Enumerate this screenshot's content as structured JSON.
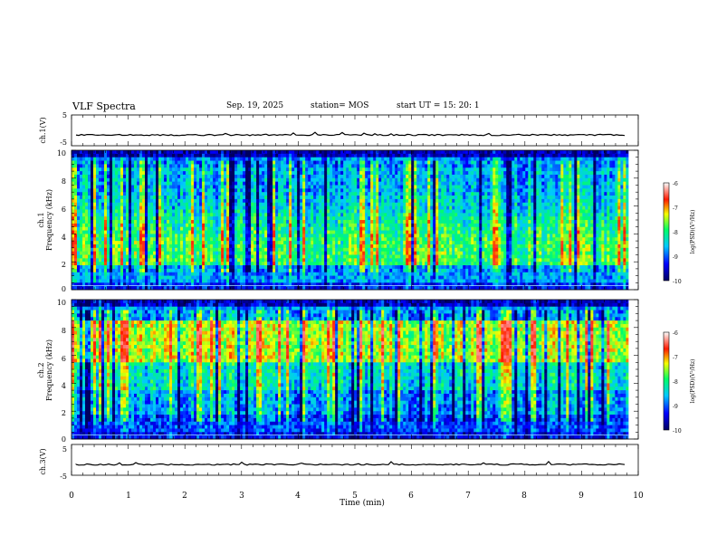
{
  "header": {
    "title": "VLF Spectra",
    "date": "Sep. 19, 2025",
    "station": "station= MOS",
    "start": "start  UT =   15: 20: 1"
  },
  "chart_data": [
    {
      "type": "line",
      "id": "ch1-waveform",
      "ylabel": "ch.1(V)",
      "ylim": [
        -5,
        5
      ],
      "y_tick_labels": [
        "5",
        "-5"
      ],
      "baseline": -1.5,
      "xlim": [
        0,
        10
      ]
    },
    {
      "type": "heatmap",
      "id": "ch1-spectrogram",
      "ylabel": [
        "ch.1",
        "Frequency (kHz)"
      ],
      "ylim": [
        0,
        10
      ],
      "y_tick_labels": [
        "0",
        "2",
        "4",
        "6",
        "8",
        "10"
      ],
      "xlim": [
        0,
        9.83
      ],
      "colorbar": {
        "label": "log(PSD)(V²/Hz)",
        "range": [
          -10,
          -6
        ],
        "tick_labels": [
          "-6",
          "-7",
          "-8",
          "-9",
          "-10"
        ]
      }
    },
    {
      "type": "heatmap",
      "id": "ch2-spectrogram",
      "ylabel": [
        "ch.2",
        "Frequency (kHz)"
      ],
      "ylim": [
        0,
        10
      ],
      "y_tick_labels": [
        "0",
        "2",
        "4",
        "6",
        "8",
        "10"
      ],
      "xlim": [
        0,
        9.83
      ],
      "colorbar": {
        "label": "log(PSD)(V²/Hz)",
        "range": [
          -10,
          -6
        ],
        "tick_labels": [
          "-6",
          "-7",
          "-8",
          "-9",
          "-10"
        ]
      }
    },
    {
      "type": "line",
      "id": "ch3-waveform",
      "ylabel": "ch.3(V)",
      "ylim": [
        -5,
        5
      ],
      "y_tick_labels": [
        "5",
        "-5"
      ],
      "baseline": -1.5,
      "xlim": [
        0,
        10
      ]
    }
  ],
  "x_axis": {
    "label": "Time (min)",
    "range": [
      0,
      10
    ],
    "tick_labels": [
      "0",
      "1",
      "2",
      "3",
      "4",
      "5",
      "6",
      "7",
      "8",
      "9",
      "10"
    ]
  },
  "colors": {
    "colormap": [
      "#000060",
      "#0000ff",
      "#00c8ff",
      "#00ff66",
      "#f5ff00",
      "#ff1a00",
      "#ffffff"
    ],
    "frame": "#000000"
  }
}
